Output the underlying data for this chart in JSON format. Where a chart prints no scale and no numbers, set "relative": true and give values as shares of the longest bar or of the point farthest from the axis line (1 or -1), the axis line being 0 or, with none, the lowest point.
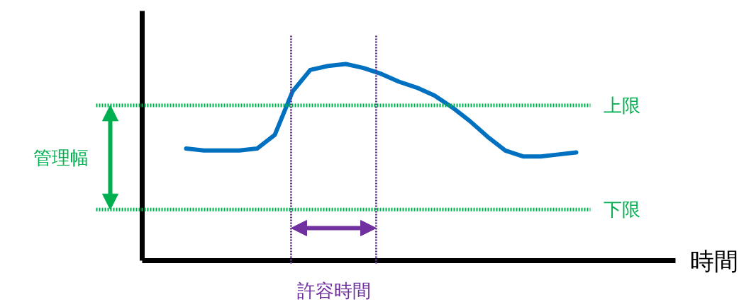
{
  "chart_data": {
    "type": "line",
    "relative": true,
    "xlabel": "時間",
    "tick_labels": false,
    "grid": false,
    "line_style": "solid",
    "marker": "none",
    "categories": [
      null,
      null,
      null,
      null,
      null,
      null,
      null,
      null,
      null,
      null,
      null,
      null,
      null,
      null,
      null,
      null,
      null,
      null,
      null,
      null,
      null,
      null,
      null
    ],
    "series": [
      {
        "color": "#0070c0",
        "values": [
          0.57,
          0.56,
          0.56,
          0.56,
          0.57,
          0.64,
          0.86,
          0.97,
          0.99,
          1,
          0.98,
          0.95,
          0.91,
          0.88,
          0.84,
          0.78,
          0.71,
          0.63,
          0.56,
          0.53,
          0.53,
          0.54,
          0.55
        ]
      }
    ],
    "ref_lines": [
      {
        "axis": "y",
        "value": 0.79,
        "label": "上限",
        "color": "#00b050",
        "line_style": "dotted"
      },
      {
        "axis": "y",
        "value": 0.26,
        "label": "下限",
        "color": "#00b050",
        "line_style": "dotted"
      }
    ],
    "annotations": [
      "管理幅",
      "許容時間"
    ]
  }
}
